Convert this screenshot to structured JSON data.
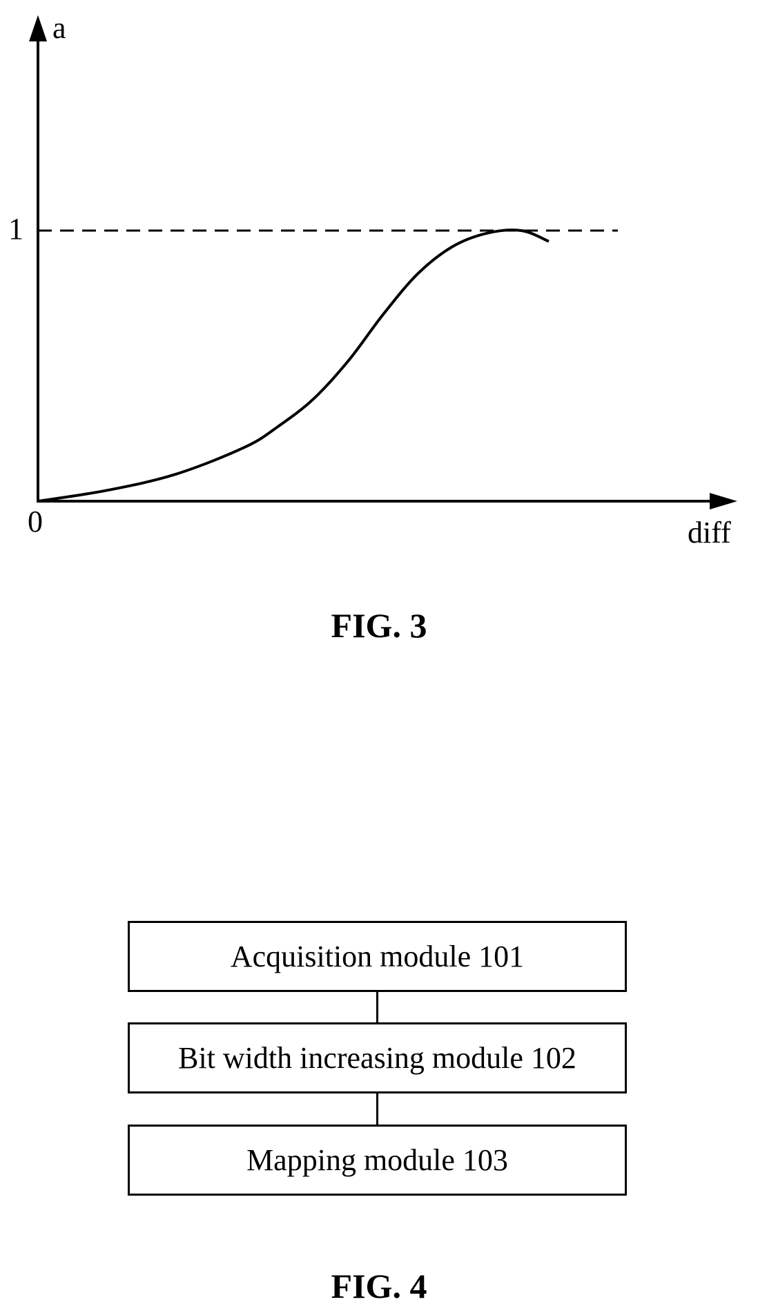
{
  "fig3": {
    "caption": "FIG. 3",
    "chart_data": {
      "type": "line",
      "xlabel": "diff",
      "ylabel": "a",
      "origin_label": "0",
      "y_tick_labels": [
        "1"
      ],
      "reference_line": {
        "y": 1,
        "style": "dashed"
      },
      "series": [
        {
          "x": [
            0,
            0.1,
            0.2,
            0.3,
            0.35,
            0.4,
            0.45,
            0.5,
            0.55,
            0.6,
            0.65,
            0.7,
            0.74
          ],
          "y": [
            0,
            0.04,
            0.1,
            0.2,
            0.28,
            0.38,
            0.52,
            0.69,
            0.84,
            0.94,
            0.99,
            1.0,
            0.96
          ]
        }
      ],
      "xlim": [
        0,
        1
      ],
      "ylim": [
        0,
        1
      ],
      "grid": false,
      "colors": {
        "line": "#000000"
      }
    }
  },
  "fig4": {
    "caption": "FIG. 4",
    "modules": [
      {
        "label": "Acquisition module 101"
      },
      {
        "label": "Bit width increasing module 102"
      },
      {
        "label": "Mapping module 103"
      }
    ]
  }
}
